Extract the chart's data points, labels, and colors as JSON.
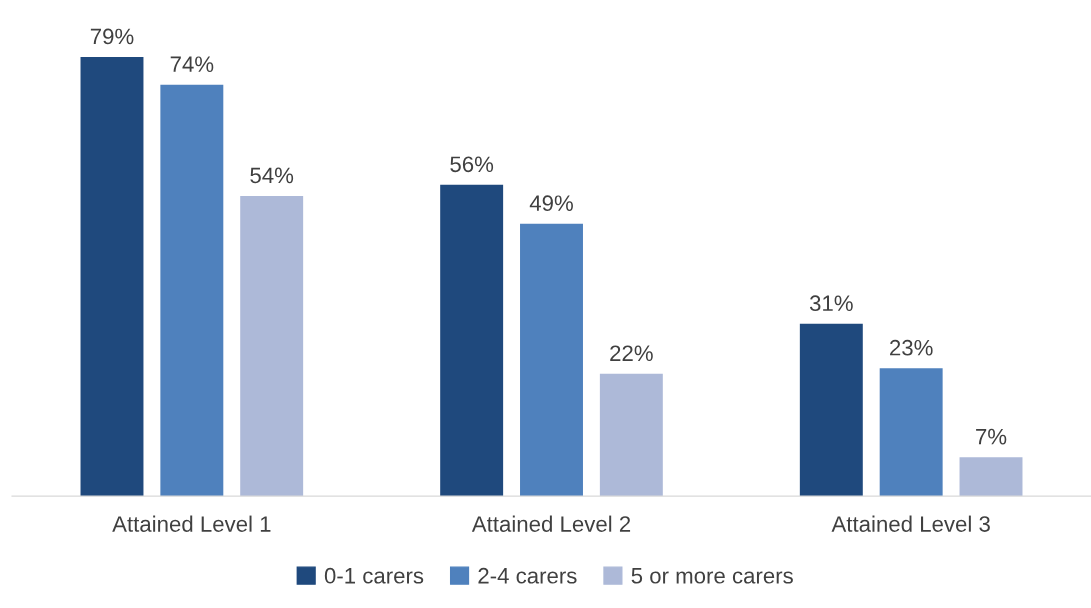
{
  "chart_data": {
    "type": "bar",
    "categories": [
      "Attained Level 1",
      "Attained Level 2",
      "Attained Level 3"
    ],
    "series": [
      {
        "name": "0-1 carers",
        "color": "#1f497d",
        "values": [
          79,
          56,
          31
        ],
        "value_labels": [
          "79%",
          "56%",
          "31%"
        ]
      },
      {
        "name": "2-4 carers",
        "color": "#4f81bd",
        "values": [
          74,
          49,
          23
        ],
        "value_labels": [
          "74%",
          "49%",
          "23%"
        ]
      },
      {
        "name": "5 or more carers",
        "color": "#adb9d8",
        "values": [
          54,
          22,
          7
        ],
        "value_labels": [
          "54%",
          "22%",
          "7%"
        ]
      }
    ],
    "tick_labels": "x",
    "grid": false,
    "legend": "bottom"
  }
}
